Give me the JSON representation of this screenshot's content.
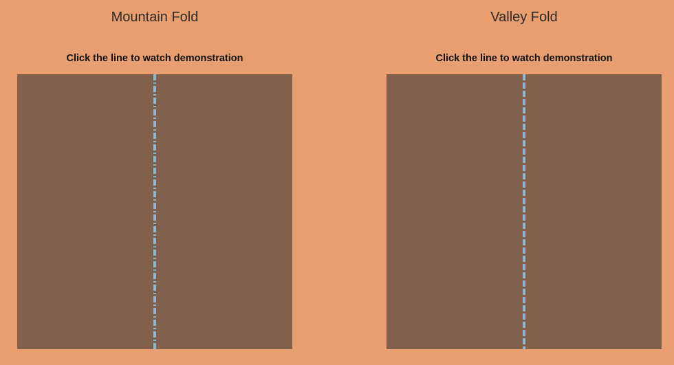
{
  "colors": {
    "background": "#e89e6e",
    "paper": "#81614b",
    "fold_line": "#8fb6d1",
    "title_text": "#2b2b2b",
    "instruction_text": "#111111"
  },
  "panels": [
    {
      "title": "Mountain Fold",
      "instruction": "Click the line to watch demonstration",
      "fold_pattern": "dash-dot"
    },
    {
      "title": "Valley Fold",
      "instruction": "Click the line to watch demonstration",
      "fold_pattern": "dashed"
    }
  ]
}
